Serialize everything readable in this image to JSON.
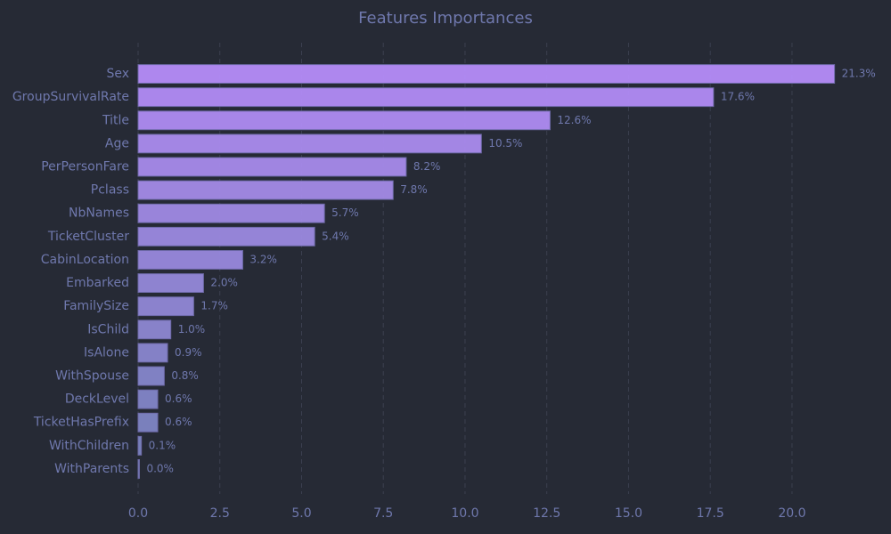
{
  "chart_data": {
    "type": "barh",
    "title": "Features Importances",
    "categories": [
      "Sex",
      "GroupSurvivalRate",
      "Title",
      "Age",
      "PerPersonFare",
      "Pclass",
      "NbNames",
      "TicketCluster",
      "CabinLocation",
      "Embarked",
      "FamilySize",
      "IsChild",
      "IsAlone",
      "WithSpouse",
      "DeckLevel",
      "TicketHasPrefix",
      "WithChildren",
      "WithParents"
    ],
    "values": [
      21.3,
      17.6,
      12.6,
      10.5,
      8.2,
      7.8,
      5.7,
      5.4,
      3.2,
      2.0,
      1.7,
      1.0,
      0.9,
      0.8,
      0.6,
      0.6,
      0.1,
      0.04
    ],
    "value_labels": [
      "21.3%",
      "17.6%",
      "12.6%",
      "10.5%",
      "8.2%",
      "7.8%",
      "5.7%",
      "5.4%",
      "3.2%",
      "2.0%",
      "1.7%",
      "1.0%",
      "0.9%",
      "0.8%",
      "0.6%",
      "0.6%",
      "0.1%",
      "0.0%"
    ],
    "colors": [
      "#b58cf9",
      "#b18bf5",
      "#ae8bf2",
      "#aa8bee",
      "#a68aeb",
      "#a38ae7",
      "#9f89e4",
      "#9b89e0",
      "#9888dd",
      "#9488d9",
      "#9087d6",
      "#8d87d2",
      "#8986cf",
      "#8586cb",
      "#8285c8",
      "#7e85c4",
      "#7a84c1",
      "#7784bd"
    ],
    "xlim": [
      0,
      22.4
    ],
    "xticks": [
      {
        "value": 0,
        "label": "0.0"
      },
      {
        "value": 2.5,
        "label": "2.5"
      },
      {
        "value": 5,
        "label": "5.0"
      },
      {
        "value": 7.5,
        "label": "7.5"
      },
      {
        "value": 10,
        "label": "10.0"
      },
      {
        "value": 12.5,
        "label": "12.5"
      },
      {
        "value": 15,
        "label": "15.0"
      },
      {
        "value": 17.5,
        "label": "17.5"
      },
      {
        "value": 20,
        "label": "20.0"
      }
    ],
    "grid": true
  }
}
